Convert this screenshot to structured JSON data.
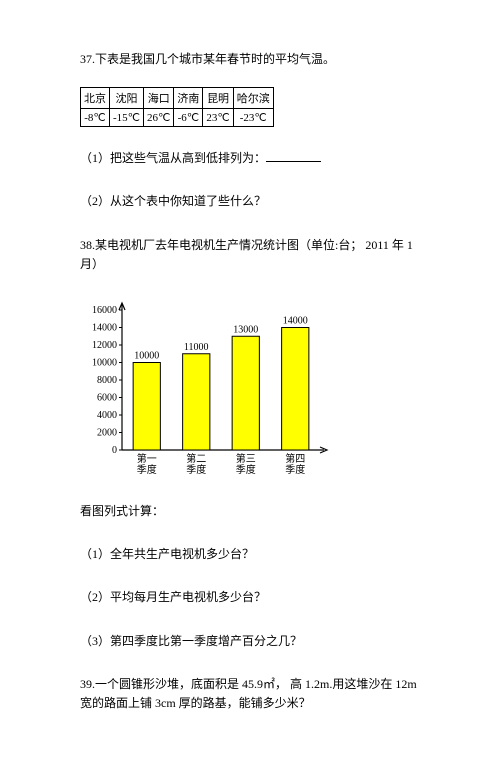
{
  "q37": {
    "title": "37.下表是我国几个城市某年春节时的平均气温。",
    "table": {
      "columns": [
        "北京",
        "沈阳",
        "海口",
        "济南",
        "昆明",
        "哈尔滨"
      ],
      "rows": [
        [
          "-8℃",
          "-15℃",
          "26℃",
          "-6℃",
          "23℃",
          "-23℃"
        ]
      ]
    },
    "sub1": "（1）把这些气温从高到低排列为：",
    "sub2": "（2）从这个表中你知道了些什么？"
  },
  "q38": {
    "title": "38.某电视机厂去年电视机生产情况统计图（单位:台； 2011 年 1 月）",
    "chart": {
      "type": "bar",
      "categories": [
        "第一\n季度",
        "第二\n季度",
        "第三\n季度",
        "第四\n季度"
      ],
      "values": [
        10000,
        11000,
        13000,
        14000
      ],
      "value_labels": [
        "10000",
        "11000",
        "13000",
        "14000"
      ],
      "bar_color": "#ffff00",
      "bar_border": "#000000",
      "ylim": [
        0,
        16000
      ],
      "yticks": [
        0,
        2000,
        4000,
        6000,
        8000,
        10000,
        12000,
        14000,
        16000
      ],
      "background_color": "#ffffff",
      "axis_color": "#000000",
      "tick_fontsize": 10,
      "label_fontsize": 10,
      "bar_width": 0.55
    },
    "after": "看图列式计算：",
    "sub1": "（1）全年共生产电视机多少台？",
    "sub2": "（2）平均每月生产电视机多少台？",
    "sub3": "（3）第四季度比第一季度增产百分之几？"
  },
  "q39": {
    "title": "39.一个圆锥形沙堆，底面积是 45.9㎡， 高 1.2m.用这堆沙在 12m 宽的路面上铺 3cm 厚的路基，能铺多少米？"
  }
}
